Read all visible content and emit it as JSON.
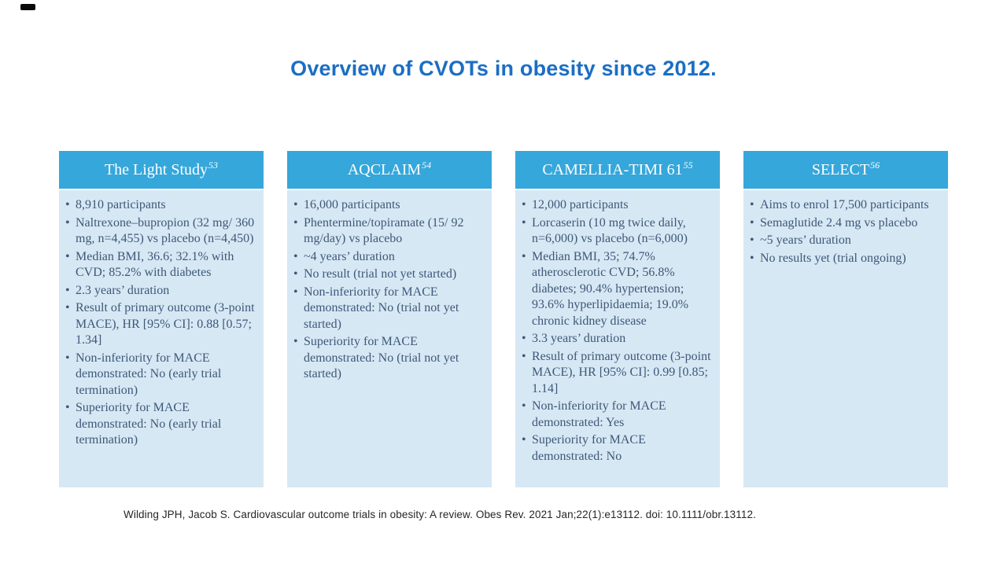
{
  "slide": {
    "title": "Overview of CVOTs in obesity since 2012.",
    "citation": "Wilding JPH, Jacob S. Cardiovascular outcome trials in obesity: A review. Obes Rev. 2021 Jan;22(1):e13112. doi: 10.1111/obr.13112."
  },
  "ui": {
    "bullet_char": "•"
  },
  "colors": {
    "title_blue": "#1b6ec4",
    "header_bar_blue": "#35a7db",
    "card_body_light_blue": "#d7e8f5",
    "body_text_blue": "#3d5877",
    "header_text_white": "#ffffff",
    "citation_text": "#262626"
  },
  "columns": [
    {
      "title": "The Light Study",
      "superscript": "53",
      "bullets": [
        "8,910 participants",
        "Naltrexone–bupropion (32 mg/ 360 mg, n=4,455) vs placebo (n=4,450)",
        "Median BMI, 36.6; 32.1% with CVD; 85.2% with diabetes",
        "2.3 years’ duration",
        "Result of primary outcome (3-point MACE), HR [95% CI]: 0.88 [0.57; 1.34]",
        "Non-inferiority for MACE demonstrated: No (early trial termination)",
        "Superiority for MACE demonstrated: No (early trial termination)"
      ]
    },
    {
      "title": "AQCLAIM",
      "superscript": "54",
      "bullets": [
        "16,000 participants",
        "Phentermine/topiramate (15/ 92 mg/day) vs placebo",
        "~4 years’ duration",
        "No result (trial not yet started)",
        "Non-inferiority for MACE demonstrated: No (trial not yet started)",
        "Superiority for MACE demonstrated: No (trial not yet started)"
      ]
    },
    {
      "title": "CAMELLIA-TIMI 61",
      "superscript": "55",
      "bullets": [
        "12,000 participants",
        "Lorcaserin (10 mg twice daily, n=6,000) vs placebo (n=6,000)",
        "Median BMI, 35; 74.7% atherosclerotic CVD; 56.8% diabetes; 90.4% hypertension; 93.6% hyperlipidaemia; 19.0% chronic kidney disease",
        "3.3 years’ duration",
        "Result of primary outcome (3-point MACE), HR [95% CI]: 0.99 [0.85; 1.14]",
        "Non-inferiority for MACE demonstrated: Yes",
        "Superiority for MACE demonstrated: No"
      ]
    },
    {
      "title": "SELECT",
      "superscript": "56",
      "bullets": [
        "Aims to enrol 17,500 participants",
        "Semaglutide 2.4 mg vs placebo",
        "~5 years’ duration",
        "No results yet (trial ongoing)"
      ]
    }
  ]
}
